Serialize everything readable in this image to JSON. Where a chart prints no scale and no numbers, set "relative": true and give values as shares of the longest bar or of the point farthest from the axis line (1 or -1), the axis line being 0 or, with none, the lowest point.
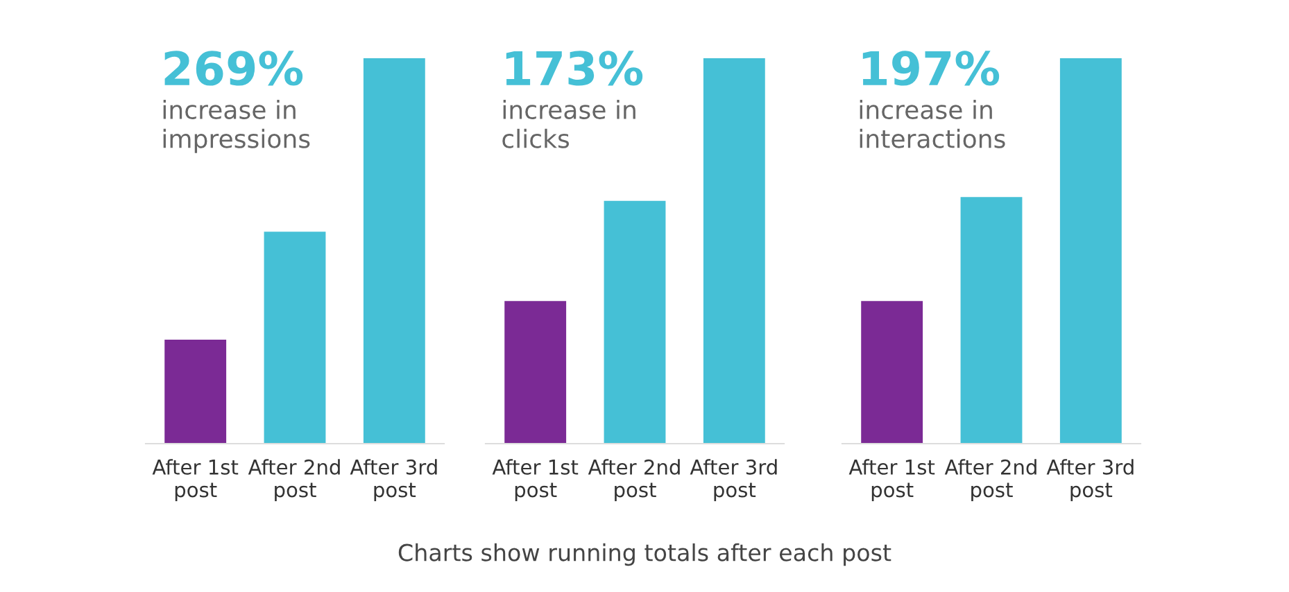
{
  "chart_data": [
    {
      "type": "bar",
      "relative": true,
      "title": "269%",
      "subtitle": "increase in\nimpressions",
      "categories": [
        "After 1st\npost",
        "After 2nd\npost",
        "After 3rd\npost"
      ],
      "values": [
        0.27,
        0.55,
        1
      ],
      "colors": [
        "#7b2a95",
        "#45c0d6",
        "#45c0d6"
      ],
      "grid": false,
      "legend": false,
      "annotations": [
        "Charts show running totals after each post"
      ]
    },
    {
      "type": "bar",
      "relative": true,
      "title": "173%",
      "subtitle": "increase in\nclicks",
      "categories": [
        "After 1st\npost",
        "After 2nd\npost",
        "After 3rd\npost"
      ],
      "values": [
        0.37,
        0.63,
        1
      ],
      "colors": [
        "#7b2a95",
        "#45c0d6",
        "#45c0d6"
      ],
      "grid": false,
      "legend": false
    },
    {
      "type": "bar",
      "relative": true,
      "title": "197%",
      "subtitle": "increase in\ninteractions",
      "categories": [
        "After 1st\npost",
        "After 2nd\npost",
        "After 3rd\npost"
      ],
      "values": [
        0.37,
        0.64,
        1
      ],
      "colors": [
        "#7b2a95",
        "#45c0d6",
        "#45c0d6"
      ],
      "grid": false,
      "legend": false
    }
  ]
}
